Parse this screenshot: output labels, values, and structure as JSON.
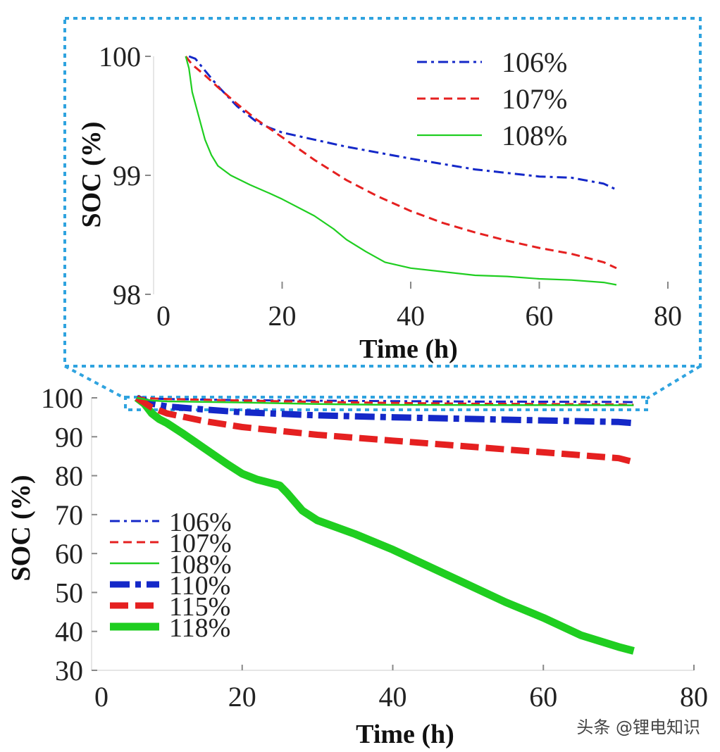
{
  "chart_data": [
    {
      "id": "inset",
      "type": "line",
      "title": "",
      "xlabel": "Time (h)",
      "ylabel": "SOC (%)",
      "xlim": [
        0,
        80
      ],
      "ylim": [
        98,
        100
      ],
      "xticks": [
        0,
        20,
        40,
        60,
        80
      ],
      "yticks": [
        98,
        99,
        100
      ],
      "legend_position": "top-right",
      "series": [
        {
          "name": "106%",
          "color": "#1428c8",
          "style": "dashdot",
          "width": 3,
          "x": [
            5.5,
            6.5,
            8,
            10,
            13,
            16,
            18,
            20,
            25,
            30,
            40,
            50,
            60,
            65,
            70,
            72
          ],
          "y": [
            100,
            99.98,
            99.88,
            99.75,
            99.58,
            99.45,
            99.4,
            99.36,
            99.3,
            99.24,
            99.14,
            99.05,
            98.99,
            98.98,
            98.93,
            98.88
          ]
        },
        {
          "name": "107%",
          "color": "#e52020",
          "style": "dashed",
          "width": 3,
          "x": [
            5,
            6,
            8,
            10,
            13,
            16,
            20,
            25,
            30,
            35,
            40,
            45,
            50,
            55,
            60,
            65,
            70,
            72
          ],
          "y": [
            100,
            99.93,
            99.84,
            99.74,
            99.6,
            99.47,
            99.32,
            99.13,
            98.96,
            98.82,
            98.7,
            98.6,
            98.52,
            98.45,
            98.39,
            98.34,
            98.27,
            98.22
          ]
        },
        {
          "name": "108%",
          "color": "#1fce20",
          "style": "solid",
          "width": 2.2,
          "x": [
            5,
            5.5,
            6,
            7,
            8,
            9,
            10,
            12,
            15,
            18,
            20,
            25,
            28,
            30,
            33,
            36,
            40,
            45,
            50,
            55,
            60,
            65,
            70,
            72
          ],
          "y": [
            100,
            99.9,
            99.7,
            99.5,
            99.3,
            99.17,
            99.08,
            99.0,
            98.92,
            98.85,
            98.8,
            98.66,
            98.55,
            98.46,
            98.36,
            98.27,
            98.22,
            98.19,
            98.16,
            98.15,
            98.13,
            98.12,
            98.1,
            98.08
          ]
        }
      ]
    },
    {
      "id": "main",
      "type": "line",
      "title": "",
      "xlabel": "Time (h)",
      "ylabel": "SOC (%)",
      "xlim": [
        0,
        80
      ],
      "ylim": [
        30,
        100
      ],
      "xticks": [
        0,
        20,
        40,
        60,
        80
      ],
      "yticks": [
        30,
        40,
        50,
        60,
        70,
        80,
        90,
        100
      ],
      "legend_position": "bottom-left",
      "series": [
        {
          "name": "106%",
          "color": "#1428c8",
          "style": "dashdot",
          "width": 3,
          "x": [
            6,
            10,
            20,
            30,
            40,
            50,
            60,
            70,
            72
          ],
          "y": [
            100,
            99.7,
            99.4,
            99.25,
            99.15,
            99.05,
            99,
            98.95,
            98.9
          ]
        },
        {
          "name": "107%",
          "color": "#e52020",
          "style": "dashed",
          "width": 3,
          "x": [
            6,
            10,
            20,
            30,
            40,
            50,
            60,
            70,
            72
          ],
          "y": [
            100,
            99.7,
            99.3,
            98.95,
            98.7,
            98.5,
            98.4,
            98.3,
            98.2
          ]
        },
        {
          "name": "108%",
          "color": "#1fce20",
          "style": "solid",
          "width": 2.5,
          "x": [
            6,
            8,
            10,
            20,
            30,
            40,
            50,
            60,
            70,
            72
          ],
          "y": [
            100,
            99.3,
            99.1,
            98.8,
            98.4,
            98.2,
            98.15,
            98.12,
            98.1,
            98.08
          ]
        },
        {
          "name": "110%",
          "color": "#1428c8",
          "style": "dashdot-bold",
          "width": 9,
          "x": [
            6,
            8,
            10,
            15,
            20,
            30,
            40,
            50,
            60,
            70,
            72
          ],
          "y": [
            100,
            98.5,
            97.8,
            97,
            96.3,
            95.5,
            95,
            94.6,
            94.2,
            93.8,
            93.5
          ]
        },
        {
          "name": "115%",
          "color": "#e52020",
          "style": "dashed-bold",
          "width": 9,
          "x": [
            6,
            8,
            10,
            15,
            20,
            25,
            30,
            40,
            50,
            60,
            70,
            72
          ],
          "y": [
            100,
            97.5,
            96,
            94,
            92.5,
            91.5,
            90.5,
            89,
            87.5,
            86,
            84.5,
            83.5
          ]
        },
        {
          "name": "118%",
          "color": "#1fce20",
          "style": "solid-bold",
          "width": 11,
          "x": [
            6,
            7,
            8,
            9,
            10,
            12,
            15,
            18,
            20,
            22,
            25,
            26,
            28,
            30,
            35,
            40,
            45,
            50,
            55,
            60,
            65,
            70,
            72
          ],
          "y": [
            100,
            98.5,
            96,
            94.5,
            93.5,
            91,
            87,
            83,
            80.5,
            79,
            77.5,
            75.5,
            71,
            68.5,
            65,
            61,
            56.5,
            52,
            47.5,
            43.5,
            39,
            36,
            35
          ]
        }
      ]
    }
  ],
  "watermark": "头条 @锂电知识"
}
